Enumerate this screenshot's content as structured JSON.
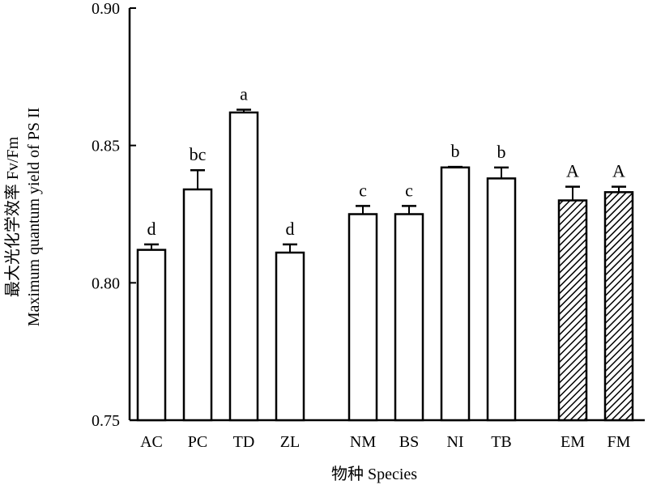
{
  "chart_data": {
    "type": "bar",
    "ylabel_line1": "最大光化学效率 Fv/Fm",
    "ylabel_line2": "Maximum quantum yield of PS II",
    "xlabel": "物种 Species",
    "ylim": [
      0.75,
      0.9
    ],
    "yticks": [
      "0.75",
      "0.80",
      "0.85",
      "0.90"
    ],
    "ytick_values": [
      0.75,
      0.8,
      0.85,
      0.9
    ],
    "groups": [
      {
        "categories": [
          "AC",
          "PC",
          "TD",
          "ZL"
        ],
        "values": [
          0.812,
          0.834,
          0.862,
          0.811
        ],
        "errors": [
          0.002,
          0.007,
          0.001,
          0.003
        ],
        "letters": [
          "d",
          "bc",
          "a",
          "d"
        ],
        "pattern": "open"
      },
      {
        "categories": [
          "NM",
          "BS",
          "NI",
          "TB"
        ],
        "values": [
          0.825,
          0.825,
          0.842,
          0.838
        ],
        "errors": [
          0.003,
          0.003,
          0.0002,
          0.004
        ],
        "letters": [
          "c",
          "c",
          "b",
          "b"
        ],
        "pattern": "open"
      },
      {
        "categories": [
          "EM",
          "FM"
        ],
        "values": [
          0.83,
          0.833
        ],
        "errors": [
          0.005,
          0.002
        ],
        "letters": [
          "A",
          "A"
        ],
        "pattern": "hatched"
      }
    ],
    "colors": {
      "bar_fill": "#ffffff",
      "bar_stroke": "#000000",
      "hatch": "#000000"
    }
  }
}
